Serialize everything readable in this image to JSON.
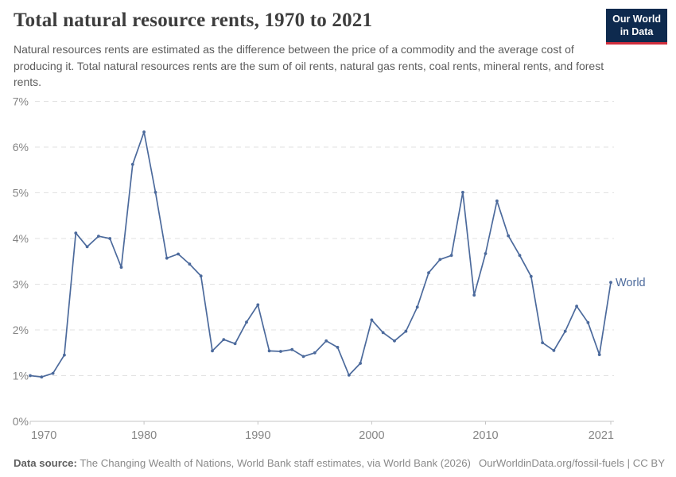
{
  "header": {
    "title": "Total natural resource rents, 1970 to 2021",
    "subtitle": "Natural resources rents are estimated as the difference between the price of a commodity and the average cost of producing it. Total natural resources rents are the sum of oil rents, natural gas rents, coal rents, mineral rents, and forest rents.",
    "logo": {
      "line1": "Our World",
      "line2": "in Data"
    }
  },
  "chart_data": {
    "type": "line",
    "title": "Total natural resource rents, 1970 to 2021",
    "xlabel": "",
    "ylabel": "",
    "xlim": [
      1970,
      2021
    ],
    "ylim": [
      0,
      7
    ],
    "x_ticks": [
      1970,
      1980,
      1990,
      2000,
      2010,
      2021
    ],
    "y_ticks": [
      "0%",
      "1%",
      "2%",
      "3%",
      "4%",
      "5%",
      "6%",
      "7%"
    ],
    "grid": "horizontal-dashed",
    "legend_position": "end-of-line-label",
    "series": [
      {
        "name": "World",
        "color": "#4C6A9C",
        "x": [
          1970,
          1971,
          1972,
          1973,
          1974,
          1975,
          1976,
          1977,
          1978,
          1979,
          1980,
          1981,
          1982,
          1983,
          1984,
          1985,
          1986,
          1987,
          1988,
          1989,
          1990,
          1991,
          1992,
          1993,
          1994,
          1995,
          1996,
          1997,
          1998,
          1999,
          2000,
          2001,
          2002,
          2003,
          2004,
          2005,
          2006,
          2007,
          2008,
          2009,
          2010,
          2011,
          2012,
          2013,
          2014,
          2015,
          2016,
          2017,
          2018,
          2019,
          2020,
          2021
        ],
        "y": [
          1.0,
          0.97,
          1.05,
          1.45,
          4.12,
          3.82,
          4.05,
          4.0,
          3.37,
          5.62,
          6.33,
          5.01,
          3.57,
          3.66,
          3.44,
          3.18,
          1.54,
          1.79,
          1.7,
          2.17,
          2.55,
          1.54,
          1.53,
          1.57,
          1.42,
          1.5,
          1.76,
          1.62,
          1.01,
          1.27,
          2.22,
          1.94,
          1.76,
          1.97,
          2.5,
          3.25,
          3.54,
          3.63,
          5.01,
          2.76,
          3.67,
          4.82,
          4.06,
          3.63,
          3.17,
          1.72,
          1.55,
          1.97,
          2.52,
          2.16,
          1.46,
          3.04
        ]
      }
    ]
  },
  "footer": {
    "data_source_label": "Data source:",
    "data_source": "The Changing Wealth of Nations, World Bank staff estimates, via World Bank (2026)",
    "link": "OurWorldinData.org/fossil-fuels",
    "separator": " | ",
    "license": "CC BY"
  },
  "colors": {
    "line": "#4C6A9C",
    "grid": "#e2e2e2",
    "axis_line": "#c4c4c4",
    "axis_text": "#858585",
    "logo_bg": "#0e2a4e",
    "logo_red": "#d02e3d"
  }
}
